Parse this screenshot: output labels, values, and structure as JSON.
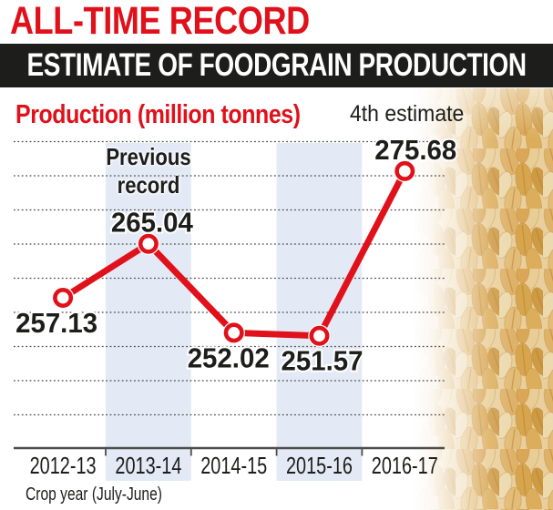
{
  "header": {
    "headline": "ALL-TIME RECORD",
    "banner": "ESTIMATE OF FOODGRAIN PRODUCTION"
  },
  "decor": {
    "right_image": "wheat-grains-photo"
  },
  "chart_data": {
    "type": "line",
    "title": "Production (million tonnes)",
    "categories": [
      "2012-13",
      "2013-14",
      "2014-15",
      "2015-16",
      "2016-17"
    ],
    "values": [
      257.13,
      265.04,
      252.02,
      251.57,
      275.68
    ],
    "value_labels": [
      "257.13",
      "265.04",
      "252.02",
      "251.57",
      "275.68"
    ],
    "xlabel": "Crop year (July-June)",
    "ylabel": "Production (million tonnes)",
    "ylim": [
      235,
      282
    ],
    "ygrid_values": [
      240,
      245,
      250,
      255,
      260,
      265,
      270,
      275,
      280
    ],
    "grid": "horizontal-dotted",
    "legend": "none",
    "highlight_bands": [
      "2013-14",
      "2015-16"
    ],
    "label_side": [
      "below",
      "above",
      "below",
      "below",
      "above"
    ],
    "annotations": [
      {
        "text": "Previous record",
        "target": "2013-14",
        "position": "above-value-label"
      },
      {
        "text": "4th estimate",
        "target": "2016-17",
        "position": "above-value-label"
      }
    ],
    "colors": {
      "line": "#e0111a",
      "marker_fill": "#ffffff",
      "band": "#e4eaf5",
      "grid": "#4a4a4a",
      "axis": "#4d4d4d",
      "text": "#1d1d1b",
      "accent_red": "#e0111a",
      "banner_bg": "#1d1d1b",
      "banner_text": "#ffffff"
    }
  }
}
